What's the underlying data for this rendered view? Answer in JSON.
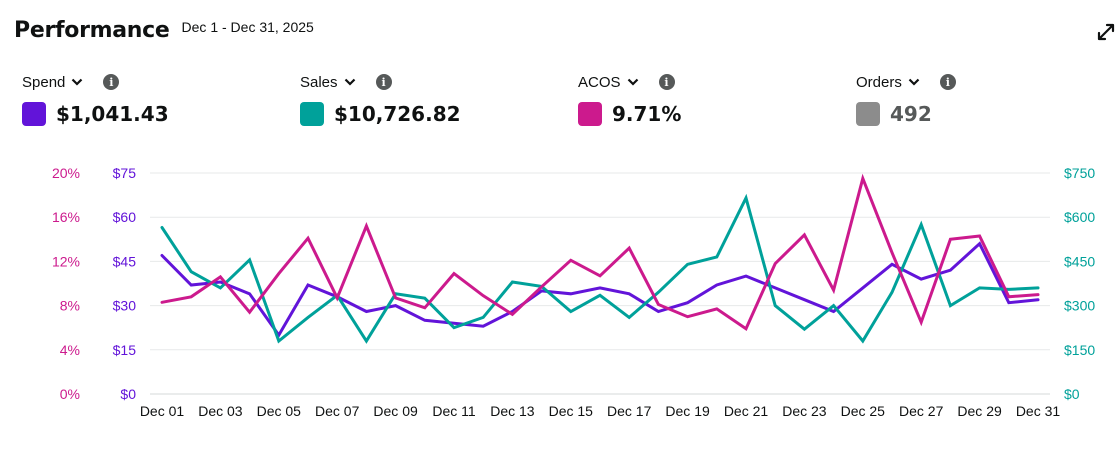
{
  "header": {
    "title": "Performance",
    "date_range": "Dec 1 - Dec 31, 2025"
  },
  "icons": {
    "expand": "expand-icon",
    "info": "info-icon",
    "chevron": "chevron-down-icon"
  },
  "metrics": [
    {
      "label": "Spend",
      "value": "$1,041.43",
      "color": "#6214d9"
    },
    {
      "label": "Sales",
      "value": "$10,726.82",
      "color": "#00a19a"
    },
    {
      "label": "ACOS",
      "value": "9.71%",
      "color": "#cc1a8d"
    },
    {
      "label": "Orders",
      "value": "492",
      "color": "#8c8c8c"
    }
  ],
  "chart_data": {
    "type": "line",
    "grid": true,
    "x": [
      "Dec 01",
      "Dec 02",
      "Dec 03",
      "Dec 04",
      "Dec 05",
      "Dec 06",
      "Dec 07",
      "Dec 08",
      "Dec 09",
      "Dec 10",
      "Dec 11",
      "Dec 12",
      "Dec 13",
      "Dec 14",
      "Dec 15",
      "Dec 16",
      "Dec 17",
      "Dec 18",
      "Dec 19",
      "Dec 20",
      "Dec 21",
      "Dec 22",
      "Dec 23",
      "Dec 24",
      "Dec 25",
      "Dec 26",
      "Dec 27",
      "Dec 28",
      "Dec 29",
      "Dec 30",
      "Dec 31"
    ],
    "x_tick_labels": [
      "Dec 01",
      "Dec 03",
      "Dec 05",
      "Dec 07",
      "Dec 09",
      "Dec 11",
      "Dec 13",
      "Dec 15",
      "Dec 17",
      "Dec 19",
      "Dec 21",
      "Dec 23",
      "Dec 25",
      "Dec 27",
      "Dec 29",
      "Dec 31"
    ],
    "axes": {
      "acos": {
        "side": "left-outer",
        "range": [
          0,
          20
        ],
        "ticks": [
          "0%",
          "4%",
          "8%",
          "12%",
          "16%",
          "20%"
        ],
        "color": "#cc1a8d"
      },
      "spend": {
        "side": "left-inner",
        "range": [
          0,
          75
        ],
        "ticks": [
          "$0",
          "$15",
          "$30",
          "$45",
          "$60",
          "$75"
        ],
        "color": "#6214d9"
      },
      "sales": {
        "side": "right",
        "range": [
          0,
          750
        ],
        "ticks": [
          "$0",
          "$150",
          "$300",
          "$450",
          "$600",
          "$750"
        ],
        "color": "#00a19a"
      }
    },
    "series": [
      {
        "name": "Spend",
        "axis": "spend",
        "color": "#6214d9",
        "values": [
          47,
          37,
          38,
          34,
          20,
          37,
          33,
          28,
          30,
          25,
          24,
          23,
          28,
          35,
          34,
          36,
          34,
          28,
          31,
          37,
          40,
          36,
          32,
          28,
          36,
          44,
          39,
          42,
          51,
          31,
          32
        ]
      },
      {
        "name": "Sales",
        "axis": "sales",
        "color": "#00a19a",
        "values": [
          565,
          415,
          360,
          455,
          180,
          260,
          335,
          180,
          340,
          325,
          225,
          260,
          380,
          365,
          280,
          335,
          260,
          345,
          440,
          465,
          665,
          300,
          220,
          300,
          180,
          345,
          575,
          300,
          360,
          355,
          360
        ]
      },
      {
        "name": "ACOS",
        "axis": "acos",
        "color": "#cc1a8d",
        "values": [
          8.3,
          8.8,
          10.6,
          7.4,
          10.9,
          14.1,
          8.7,
          15.2,
          8.7,
          7.8,
          10.9,
          8.9,
          7.2,
          9.7,
          12.1,
          10.7,
          13.2,
          8.1,
          7.0,
          7.7,
          5.9,
          11.8,
          14.4,
          9.4,
          19.5,
          12.8,
          6.5,
          14.0,
          14.3,
          8.8,
          9.0
        ]
      }
    ]
  }
}
